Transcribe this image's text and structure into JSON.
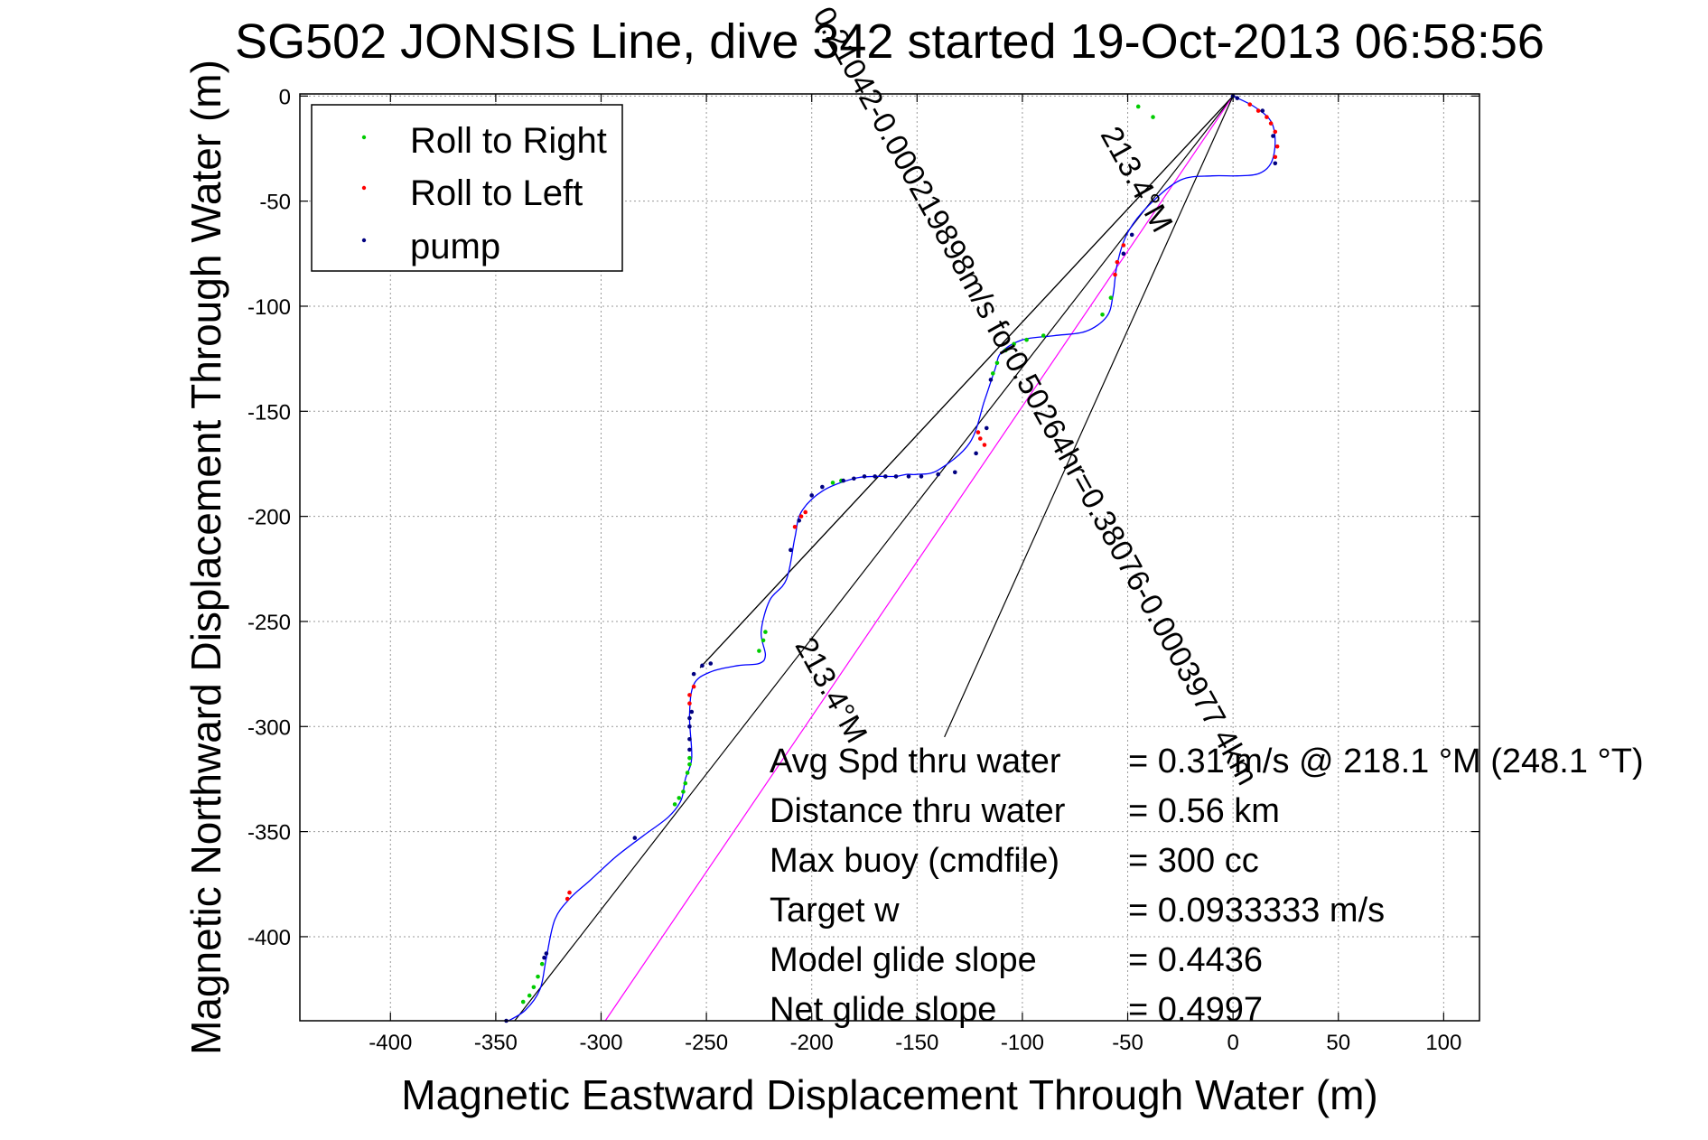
{
  "chart_data": {
    "type": "line",
    "title": "SG502 JONSIS Line, dive 342 started 19-Oct-2013 06:58:56",
    "xlabel": "Magnetic Eastward Displacement Through Water (m)",
    "ylabel": "Magnetic Northward Displacement Through Water (m)",
    "xlim": [
      -443,
      117
    ],
    "ylim": [
      -440,
      1
    ],
    "xticks": [
      -400,
      -350,
      -300,
      -250,
      -200,
      -150,
      -100,
      -50,
      0,
      50,
      100
    ],
    "yticks": [
      0,
      -50,
      -100,
      -150,
      -200,
      -250,
      -300,
      -350,
      -400
    ],
    "grid": true,
    "legend_position": "top-left",
    "legend": [
      {
        "label": "Roll to Right",
        "color": "#00cc00"
      },
      {
        "label": "Roll to Left",
        "color": "#ff0000"
      },
      {
        "label": "pump",
        "color": "#000080"
      }
    ],
    "track": {
      "name": "Glider track",
      "color": "#0000ff",
      "x": [
        0,
        10,
        18,
        20,
        18,
        12,
        2,
        -10,
        -25,
        -40,
        -50,
        -55,
        -57,
        -60,
        -70,
        -85,
        -100,
        -110,
        -113,
        -118,
        -125,
        -140,
        -150,
        -155,
        -160,
        -170,
        -180,
        -195,
        -205,
        -208,
        -212,
        -220,
        -224,
        -222,
        -225,
        -235,
        -248,
        -256,
        -258,
        -257,
        -260,
        -262,
        -268,
        -280,
        -293,
        -305,
        -315,
        -322,
        -326,
        -329,
        -336,
        -344
      ],
      "y": [
        0,
        -5,
        -12,
        -22,
        -32,
        -37,
        -38,
        -38,
        -40,
        -52,
        -65,
        -80,
        -95,
        -105,
        -112,
        -114,
        -116,
        -122,
        -130,
        -145,
        -165,
        -178,
        -180,
        -180,
        -181,
        -181,
        -182,
        -188,
        -198,
        -210,
        -230,
        -240,
        -255,
        -266,
        -270,
        -271,
        -274,
        -280,
        -295,
        -315,
        -325,
        -335,
        -343,
        -352,
        -362,
        -373,
        -382,
        -392,
        -410,
        -425,
        -435,
        -440
      ]
    },
    "reference_lines": [
      {
        "name": "line-1",
        "color": "#000000",
        "x": [
          0,
          -253
        ],
        "y": [
          0,
          -272
        ]
      },
      {
        "name": "line-2",
        "color": "#000000",
        "x": [
          0,
          -341
        ],
        "y": [
          0,
          -440
        ]
      },
      {
        "name": "line-3",
        "color": "#ff00ff",
        "x": [
          0,
          -298
        ],
        "y": [
          0,
          -440
        ]
      },
      {
        "name": "line-4",
        "color": "#000000",
        "x": [
          0,
          -137
        ],
        "y": [
          0,
          -305
        ]
      },
      {
        "name": "line-5",
        "color": "#000000",
        "x": [
          0,
          -253
        ],
        "y": [
          0,
          -272
        ]
      }
    ],
    "markers": {
      "right": [
        [
          -45,
          -5
        ],
        [
          -38,
          -10
        ],
        [
          -58,
          -96
        ],
        [
          -62,
          -104
        ],
        [
          -90,
          -114
        ],
        [
          -98,
          -116
        ],
        [
          -104,
          -118
        ],
        [
          -108,
          -121
        ],
        [
          -112,
          -127
        ],
        [
          -114,
          -132
        ],
        [
          -190,
          -184
        ],
        [
          -186,
          -183
        ],
        [
          -222,
          -255
        ],
        [
          -223,
          -259
        ],
        [
          -225,
          -264
        ],
        [
          -258,
          -315
        ],
        [
          -258,
          -318
        ],
        [
          -259,
          -322
        ],
        [
          -260,
          -327
        ],
        [
          -261,
          -331
        ],
        [
          -263,
          -334
        ],
        [
          -265,
          -337
        ],
        [
          -328,
          -413
        ],
        [
          -330,
          -419
        ],
        [
          -332,
          -424
        ],
        [
          -334,
          -428
        ],
        [
          -337,
          -431
        ]
      ],
      "left": [
        [
          8,
          -4
        ],
        [
          12,
          -7
        ],
        [
          16,
          -10
        ],
        [
          18,
          -13
        ],
        [
          20,
          -17
        ],
        [
          21,
          -24
        ],
        [
          20,
          -29
        ],
        [
          -52,
          -71
        ],
        [
          -55,
          -79
        ],
        [
          -56,
          -85
        ],
        [
          -118,
          -166
        ],
        [
          -120,
          -163
        ],
        [
          -121,
          -160
        ],
        [
          -203,
          -198
        ],
        [
          -205,
          -200
        ],
        [
          -208,
          -205
        ],
        [
          -256,
          -281
        ],
        [
          -258,
          -285
        ],
        [
          -258,
          -289
        ],
        [
          -316,
          -382
        ],
        [
          -315,
          -379
        ]
      ],
      "pump": [
        [
          0,
          0
        ],
        [
          2,
          -1
        ],
        [
          14,
          -7
        ],
        [
          19,
          -19
        ],
        [
          20,
          -32
        ],
        [
          -48,
          -66
        ],
        [
          -52,
          -75
        ],
        [
          -115,
          -135
        ],
        [
          -117,
          -158
        ],
        [
          -122,
          -170
        ],
        [
          -132,
          -179
        ],
        [
          -140,
          -180
        ],
        [
          -148,
          -181
        ],
        [
          -154,
          -181
        ],
        [
          -160,
          -181
        ],
        [
          -165,
          -181
        ],
        [
          -170,
          -181
        ],
        [
          -175,
          -181
        ],
        [
          -180,
          -182
        ],
        [
          -185,
          -183
        ],
        [
          -195,
          -186
        ],
        [
          -200,
          -190
        ],
        [
          -206,
          -202
        ],
        [
          -210,
          -216
        ],
        [
          -248,
          -270
        ],
        [
          -252,
          -271
        ],
        [
          -256,
          -275
        ],
        [
          -257,
          -293
        ],
        [
          -258,
          -296
        ],
        [
          -258,
          -300
        ],
        [
          -258,
          -306
        ],
        [
          -258,
          -311
        ],
        [
          -284,
          -353
        ],
        [
          -326,
          -408
        ],
        [
          -327,
          -410
        ],
        [
          -345,
          -440
        ]
      ]
    },
    "annotations": [
      {
        "text": "0.21042-0.000219898m/s for0.50264hr=0.38076-0.0003977 4km",
        "x": -98,
        "y": -145,
        "rotation": 61
      },
      {
        "text": "213.4°M",
        "x": -50,
        "y": -42,
        "rotation": 61
      },
      {
        "text": "213.4°M",
        "x": -195,
        "y": -285,
        "rotation": 61
      }
    ],
    "stats": [
      {
        "label": "Avg Spd thru water",
        "value": "=  0.31 m/s @ 218.1 °M (248.1 °T)"
      },
      {
        "label": "Distance thru water",
        "value": "=  0.56 km"
      },
      {
        "label": "Max buoy (cmdfile)",
        "value": "= 300 cc"
      },
      {
        "label": "Target w",
        "value": "= 0.0933333 m/s"
      },
      {
        "label": "Model glide slope",
        "value": "= 0.4436"
      },
      {
        "label": "Net glide slope",
        "value": "= 0.4997"
      }
    ]
  }
}
